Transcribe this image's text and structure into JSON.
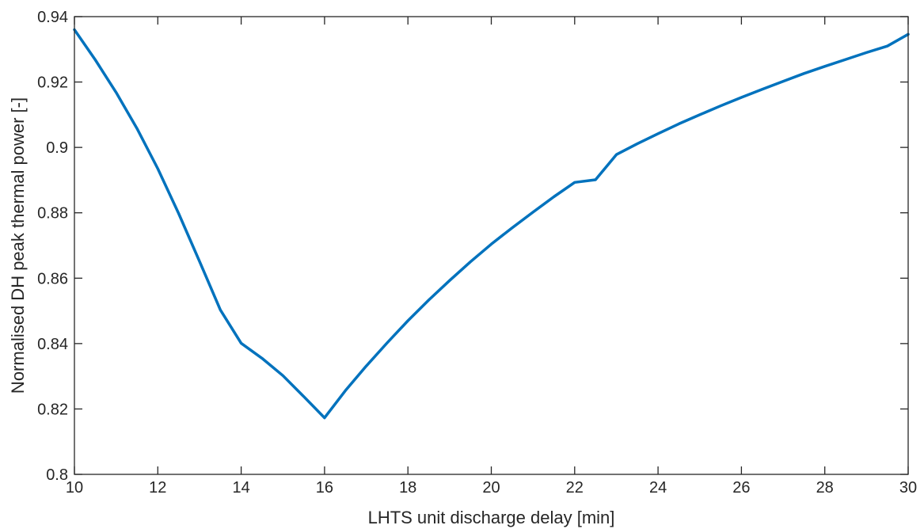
{
  "chart_data": {
    "type": "line",
    "title": "",
    "xlabel": "LHTS unit discharge delay [min]",
    "ylabel": "Normalised DH peak thermal power [-]",
    "xlim": [
      10,
      30
    ],
    "ylim": [
      0.8,
      0.94
    ],
    "xticks": [
      10,
      12,
      14,
      16,
      18,
      20,
      22,
      24,
      26,
      28,
      30
    ],
    "xtick_labels": [
      "10",
      "12",
      "14",
      "16",
      "18",
      "20",
      "22",
      "24",
      "26",
      "28",
      "30"
    ],
    "yticks": [
      0.8,
      0.82,
      0.84,
      0.86,
      0.88,
      0.9,
      0.92,
      0.94
    ],
    "ytick_labels": [
      "0.8",
      "0.82",
      "0.84",
      "0.86",
      "0.88",
      "0.9",
      "0.92",
      "0.94"
    ],
    "grid": false,
    "series": [
      {
        "color": "#0072BD",
        "x": [
          10,
          10.5,
          11,
          11.5,
          12,
          12.5,
          13,
          13.5,
          14,
          14.5,
          15,
          15.5,
          16,
          16.5,
          17,
          17.5,
          18,
          18.5,
          19,
          19.5,
          20,
          20.5,
          21,
          21.5,
          22,
          22.5,
          23,
          23.5,
          24,
          24.5,
          25,
          25.5,
          26,
          26.5,
          27,
          27.5,
          28,
          28.5,
          29,
          29.5,
          30
        ],
        "y": [
          0.936,
          0.9268,
          0.9168,
          0.9058,
          0.8935,
          0.8798,
          0.8652,
          0.8503,
          0.8401,
          0.8355,
          0.8302,
          0.8238,
          0.8173,
          0.8256,
          0.8331,
          0.8402,
          0.847,
          0.8533,
          0.8593,
          0.865,
          0.8704,
          0.8754,
          0.8802,
          0.8849,
          0.8893,
          0.8901,
          0.8978,
          0.9011,
          0.9042,
          0.9072,
          0.91,
          0.9127,
          0.9153,
          0.9178,
          0.9202,
          0.9226,
          0.9248,
          0.9269,
          0.929,
          0.931,
          0.9346
        ]
      }
    ]
  }
}
